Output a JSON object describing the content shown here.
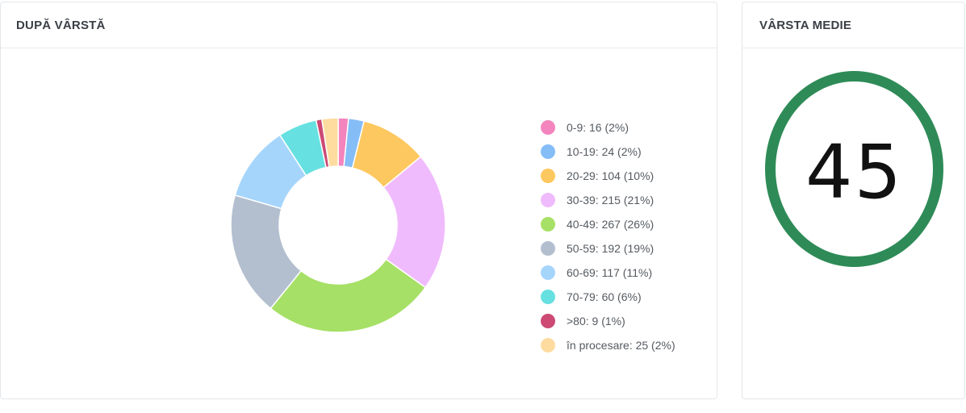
{
  "age_card": {
    "title": "DUPĂ VÂRSTĂ"
  },
  "avg_card": {
    "title": "VÂRSTA MEDIE",
    "value": "45",
    "ring_color": "#2e8b57"
  },
  "chart_data": {
    "type": "pie",
    "variant": "donut",
    "title": "DUPĂ VÂRSTĂ",
    "legend_position": "right",
    "slices": [
      {
        "label": "0-9: 16 (2%)",
        "value": 16,
        "color": "#f384bd"
      },
      {
        "label": "10-19: 24 (2%)",
        "value": 24,
        "color": "#85bdf7"
      },
      {
        "label": "20-29: 104 (10%)",
        "value": 104,
        "color": "#fec860"
      },
      {
        "label": "30-39: 215 (21%)",
        "value": 215,
        "color": "#f0bbfd"
      },
      {
        "label": "40-49: 267 (26%)",
        "value": 267,
        "color": "#a6e066"
      },
      {
        "label": "50-59: 192 (19%)",
        "value": 192,
        "color": "#b3bfcf"
      },
      {
        "label": "60-69: 117 (11%)",
        "value": 117,
        "color": "#a6d5fc"
      },
      {
        "label": "70-79: 60 (6%)",
        "value": 60,
        "color": "#66e0e0"
      },
      {
        "label": ">80: 9 (1%)",
        "value": 9,
        "color": "#cc4a74"
      },
      {
        "label": "în procesare: 25 (2%)",
        "value": 25,
        "color": "#fedca0"
      }
    ]
  }
}
